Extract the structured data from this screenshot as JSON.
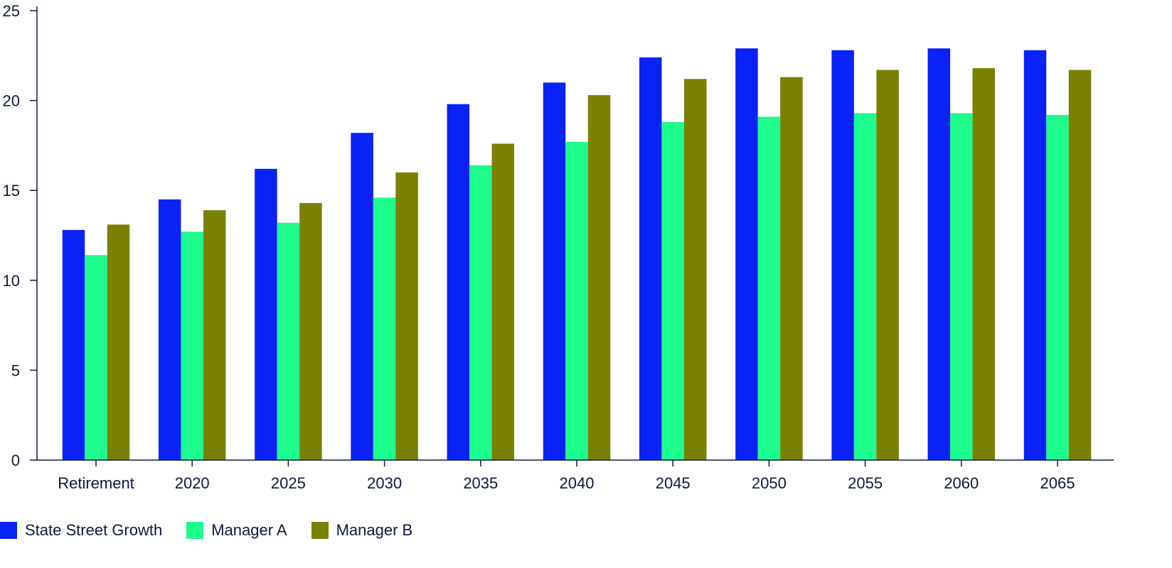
{
  "chart_data": {
    "type": "bar",
    "title": "",
    "xlabel": "",
    "ylabel": "",
    "ylim": [
      0,
      25
    ],
    "yticks": [
      "0",
      "5",
      "10",
      "15",
      "20",
      "25"
    ],
    "grid": false,
    "legend_position": "bottom-left",
    "categories": [
      "Retirement",
      "2020",
      "2025",
      "2030",
      "2035",
      "2040",
      "2045",
      "2050",
      "2055",
      "2060",
      "2065"
    ],
    "series": [
      {
        "name": "State Street Growth",
        "color": "#0a22f5",
        "values": [
          12.8,
          14.5,
          16.2,
          18.2,
          19.8,
          21.0,
          22.4,
          22.9,
          22.8,
          22.9,
          22.8
        ]
      },
      {
        "name": "Manager A",
        "color": "#1dfc8c",
        "values": [
          11.4,
          12.7,
          13.2,
          14.6,
          16.4,
          17.7,
          18.8,
          19.1,
          19.3,
          19.3,
          19.2
        ]
      },
      {
        "name": "Manager B",
        "color": "#7a8000",
        "values": [
          13.1,
          13.9,
          14.3,
          16.0,
          17.6,
          20.3,
          21.2,
          21.3,
          21.7,
          21.8,
          21.7
        ]
      }
    ]
  }
}
